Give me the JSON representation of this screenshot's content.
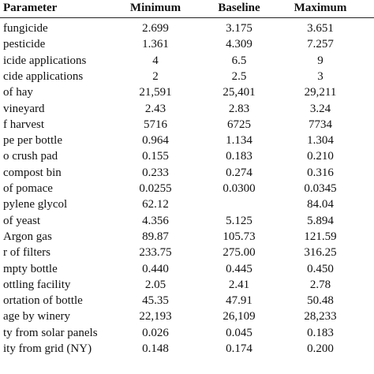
{
  "table": {
    "header": [
      "Parameter",
      "Minimum",
      "Baseline",
      "Maximum"
    ],
    "rows": [
      [
        "fungicide",
        "2.699",
        "3.175",
        "3.651"
      ],
      [
        "pesticide",
        "1.361",
        "4.309",
        "7.257"
      ],
      [
        "icide applications",
        "4",
        "6.5",
        "9"
      ],
      [
        "cide applications",
        "2",
        "2.5",
        "3"
      ],
      [
        "of hay",
        "21,591",
        "25,401",
        "29,211"
      ],
      [
        "vineyard",
        "2.43",
        "2.83",
        "3.24"
      ],
      [
        "f harvest",
        "5716",
        "6725",
        "7734"
      ],
      [
        "pe per bottle",
        "0.964",
        "1.134",
        "1.304"
      ],
      [
        "o crush pad",
        "0.155",
        "0.183",
        "0.210"
      ],
      [
        "compost bin",
        "0.233",
        "0.274",
        "0.316"
      ],
      [
        "of pomace",
        "0.0255",
        "0.0300",
        "0.0345"
      ],
      [
        "pylene glycol",
        "62.12",
        null,
        "84.04"
      ],
      [
        "of yeast",
        "4.356",
        "5.125",
        "5.894"
      ],
      [
        "Argon gas",
        "89.87",
        "105.73",
        "121.59"
      ],
      [
        "r of filters",
        "233.75",
        "275.00",
        "316.25"
      ],
      [
        "mpty bottle",
        "0.440",
        "0.445",
        "0.450"
      ],
      [
        "ottling facility",
        "2.05",
        "2.41",
        "2.78"
      ],
      [
        "ortation of bottle",
        "45.35",
        "47.91",
        "50.48"
      ],
      [
        "age by winery",
        "22,193",
        "26,109",
        "28,233"
      ],
      [
        "ty from solar panels",
        "0.026",
        "0.045",
        "0.183"
      ],
      [
        "ity from grid (NY)",
        "0.148",
        "0.174",
        "0.200"
      ]
    ]
  }
}
